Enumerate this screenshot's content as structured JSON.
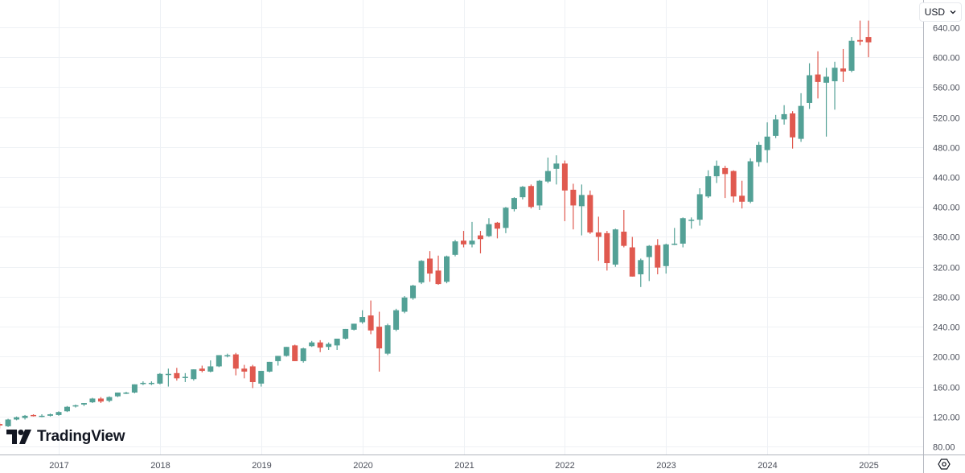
{
  "header": {
    "currency_label": "USD"
  },
  "brand": {
    "name": "TradingView"
  },
  "colors": {
    "up": "#53a196",
    "down": "#e0594f",
    "grid": "#eef1f5",
    "axis": "#b2b5be"
  },
  "chart_data": {
    "type": "candlestick",
    "interval": "monthly",
    "title": "",
    "xlabel": "",
    "ylabel": "USD",
    "ylim": [
      72,
      650
    ],
    "y_ticks": [
      "80.00",
      "120.00",
      "160.00",
      "200.00",
      "240.00",
      "280.00",
      "320.00",
      "360.00",
      "400.00",
      "440.00",
      "480.00",
      "520.00",
      "560.00",
      "600.00",
      "640.00"
    ],
    "x_ticks": [
      "2017",
      "2018",
      "2019",
      "2020",
      "2021",
      "2022",
      "2023",
      "2024",
      "2025"
    ],
    "grid": true,
    "fields": [
      "month",
      "open",
      "high",
      "low",
      "close"
    ],
    "candles": [
      [
        "2016-06",
        110,
        112,
        104,
        108
      ],
      [
        "2016-07",
        107,
        117,
        106,
        116
      ],
      [
        "2016-08",
        116,
        120,
        115,
        119
      ],
      [
        "2016-09",
        118,
        122,
        116,
        121
      ],
      [
        "2016-10",
        122,
        123,
        120,
        121
      ],
      [
        "2016-11",
        121,
        123,
        119,
        121
      ],
      [
        "2016-12",
        121,
        124,
        120,
        123
      ],
      [
        "2017-01",
        122,
        127,
        121,
        126
      ],
      [
        "2017-02",
        127,
        134,
        126,
        133
      ],
      [
        "2017-03",
        134,
        136,
        132,
        135
      ],
      [
        "2017-04",
        136,
        138,
        134,
        138
      ],
      [
        "2017-05",
        139,
        145,
        138,
        144
      ],
      [
        "2017-06",
        144,
        146,
        138,
        140
      ],
      [
        "2017-07",
        141,
        147,
        139,
        146
      ],
      [
        "2017-08",
        147,
        152,
        146,
        152
      ],
      [
        "2017-09",
        152,
        153,
        150,
        152
      ],
      [
        "2017-10",
        152,
        163,
        151,
        163
      ],
      [
        "2017-11",
        165,
        167,
        162,
        165
      ],
      [
        "2017-12",
        164,
        167,
        162,
        165
      ],
      [
        "2018-01",
        164,
        178,
        163,
        177
      ],
      [
        "2018-02",
        177,
        184,
        160,
        177
      ],
      [
        "2018-03",
        178,
        185,
        168,
        171
      ],
      [
        "2018-04",
        172,
        178,
        166,
        173
      ],
      [
        "2018-05",
        170,
        183,
        168,
        183
      ],
      [
        "2018-06",
        184,
        188,
        179,
        181
      ],
      [
        "2018-07",
        180,
        195,
        179,
        187
      ],
      [
        "2018-08",
        187,
        202,
        186,
        202
      ],
      [
        "2018-09",
        202,
        204,
        199,
        202
      ],
      [
        "2018-10",
        203,
        205,
        175,
        184
      ],
      [
        "2018-11",
        184,
        189,
        171,
        180
      ],
      [
        "2018-12",
        187,
        189,
        158,
        166
      ],
      [
        "2019-01",
        164,
        181,
        160,
        181
      ],
      [
        "2019-02",
        180,
        193,
        179,
        193
      ],
      [
        "2019-03",
        194,
        201,
        188,
        201
      ],
      [
        "2019-04",
        201,
        213,
        200,
        213
      ],
      [
        "2019-05",
        215,
        216,
        194,
        194
      ],
      [
        "2019-06",
        194,
        212,
        192,
        211
      ],
      [
        "2019-07",
        214,
        221,
        213,
        219
      ],
      [
        "2019-08",
        219,
        222,
        206,
        212
      ],
      [
        "2019-09",
        213,
        219,
        209,
        217
      ],
      [
        "2019-10",
        215,
        224,
        209,
        224
      ],
      [
        "2019-11",
        224,
        237,
        223,
        237
      ],
      [
        "2019-12",
        236,
        244,
        235,
        244
      ],
      [
        "2020-01",
        246,
        262,
        244,
        253
      ],
      [
        "2020-02",
        255,
        275,
        230,
        235
      ],
      [
        "2020-03",
        240,
        260,
        180,
        211
      ],
      [
        "2020-04",
        204,
        244,
        202,
        242
      ],
      [
        "2020-05",
        236,
        264,
        234,
        262
      ],
      [
        "2020-06",
        260,
        281,
        258,
        279
      ],
      [
        "2020-07",
        278,
        296,
        276,
        295
      ],
      [
        "2020-08",
        299,
        329,
        297,
        328
      ],
      [
        "2020-09",
        331,
        341,
        300,
        311
      ],
      [
        "2020-10",
        315,
        335,
        296,
        297
      ],
      [
        "2020-11",
        300,
        335,
        298,
        334
      ],
      [
        "2020-12",
        336,
        356,
        334,
        354
      ],
      [
        "2021-01",
        355,
        368,
        346,
        350
      ],
      [
        "2021-02",
        350,
        380,
        346,
        355
      ],
      [
        "2021-03",
        362,
        368,
        338,
        357
      ],
      [
        "2021-04",
        361,
        385,
        360,
        377
      ],
      [
        "2021-05",
        379,
        380,
        358,
        371
      ],
      [
        "2021-06",
        372,
        400,
        365,
        399
      ],
      [
        "2021-07",
        397,
        413,
        394,
        412
      ],
      [
        "2021-08",
        413,
        428,
        410,
        427
      ],
      [
        "2021-09",
        428,
        430,
        398,
        400
      ],
      [
        "2021-10",
        402,
        436,
        396,
        435
      ],
      [
        "2021-11",
        434,
        466,
        432,
        448
      ],
      [
        "2021-12",
        451,
        469,
        430,
        458
      ],
      [
        "2022-01",
        458,
        462,
        381,
        422
      ],
      [
        "2022-02",
        423,
        431,
        370,
        402
      ],
      [
        "2022-03",
        401,
        430,
        362,
        416
      ],
      [
        "2022-04",
        416,
        422,
        364,
        366
      ],
      [
        "2022-05",
        366,
        387,
        328,
        360
      ],
      [
        "2022-06",
        365,
        368,
        315,
        325
      ],
      [
        "2022-07",
        323,
        371,
        320,
        370
      ],
      [
        "2022-08",
        367,
        396,
        346,
        348
      ],
      [
        "2022-09",
        346,
        360,
        307,
        307
      ],
      [
        "2022-10",
        310,
        331,
        293,
        329
      ],
      [
        "2022-11",
        333,
        349,
        301,
        348
      ],
      [
        "2022-12",
        349,
        357,
        310,
        319
      ],
      [
        "2023-01",
        321,
        351,
        311,
        350
      ],
      [
        "2023-02",
        351,
        372,
        349,
        351
      ],
      [
        "2023-03",
        351,
        386,
        346,
        385
      ],
      [
        "2023-04",
        383,
        386,
        371,
        383
      ],
      [
        "2023-05",
        383,
        425,
        375,
        417
      ],
      [
        "2023-06",
        414,
        449,
        412,
        441
      ],
      [
        "2023-07",
        441,
        462,
        432,
        455
      ],
      [
        "2023-08",
        452,
        455,
        412,
        444
      ],
      [
        "2023-09",
        448,
        449,
        406,
        414
      ],
      [
        "2023-10",
        415,
        435,
        398,
        407
      ],
      [
        "2023-11",
        407,
        465,
        405,
        461
      ],
      [
        "2023-12",
        460,
        487,
        454,
        483
      ],
      [
        "2024-01",
        476,
        513,
        459,
        494
      ],
      [
        "2024-02",
        495,
        523,
        492,
        517
      ],
      [
        "2024-03",
        517,
        536,
        510,
        524
      ],
      [
        "2024-04",
        525,
        528,
        478,
        493
      ],
      [
        "2024-05",
        491,
        552,
        487,
        535
      ],
      [
        "2024-06",
        539,
        592,
        531,
        576
      ],
      [
        "2024-07",
        577,
        608,
        545,
        567
      ],
      [
        "2024-08",
        566,
        586,
        494,
        574
      ],
      [
        "2024-09",
        568,
        594,
        530,
        586
      ],
      [
        "2024-10",
        585,
        611,
        567,
        581
      ],
      [
        "2024-11",
        582,
        627,
        580,
        622
      ],
      [
        "2024-12",
        623,
        649,
        616,
        621
      ],
      [
        "2025-01",
        627,
        649,
        600,
        620
      ]
    ]
  }
}
